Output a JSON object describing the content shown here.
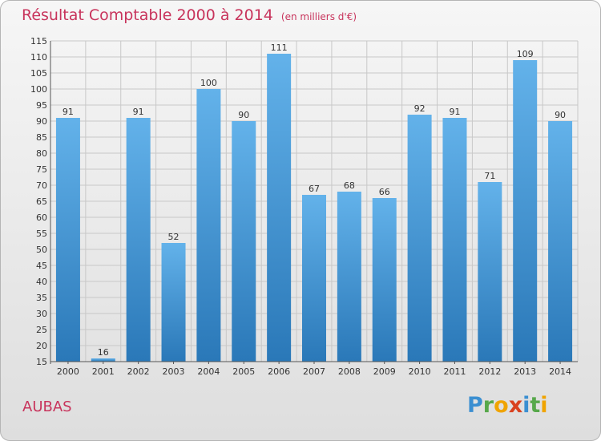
{
  "header": {
    "title": "Résultat Comptable 2000 à 2014",
    "subtitle": "(en milliers d'€)"
  },
  "footer": {
    "commune": "AUBAS",
    "logo_text": "Proxiti"
  },
  "colors": {
    "title": "#c8345c",
    "bar_top": "#63b2ea",
    "bar_bottom": "#2a78b8",
    "grid": "#c8c8c8"
  },
  "chart_data": {
    "type": "bar",
    "title": "Résultat Comptable 2000 à 2014",
    "subtitle": "(en milliers d'€)",
    "xlabel": "",
    "ylabel": "",
    "categories": [
      "2000",
      "2001",
      "2002",
      "2003",
      "2004",
      "2005",
      "2006",
      "2007",
      "2008",
      "2009",
      "2010",
      "2011",
      "2012",
      "2013",
      "2014"
    ],
    "values": [
      91,
      16,
      91,
      52,
      100,
      90,
      111,
      67,
      68,
      66,
      92,
      91,
      71,
      109,
      90
    ],
    "ylim": [
      15,
      115
    ],
    "ytick_step": 5,
    "grid": true
  }
}
